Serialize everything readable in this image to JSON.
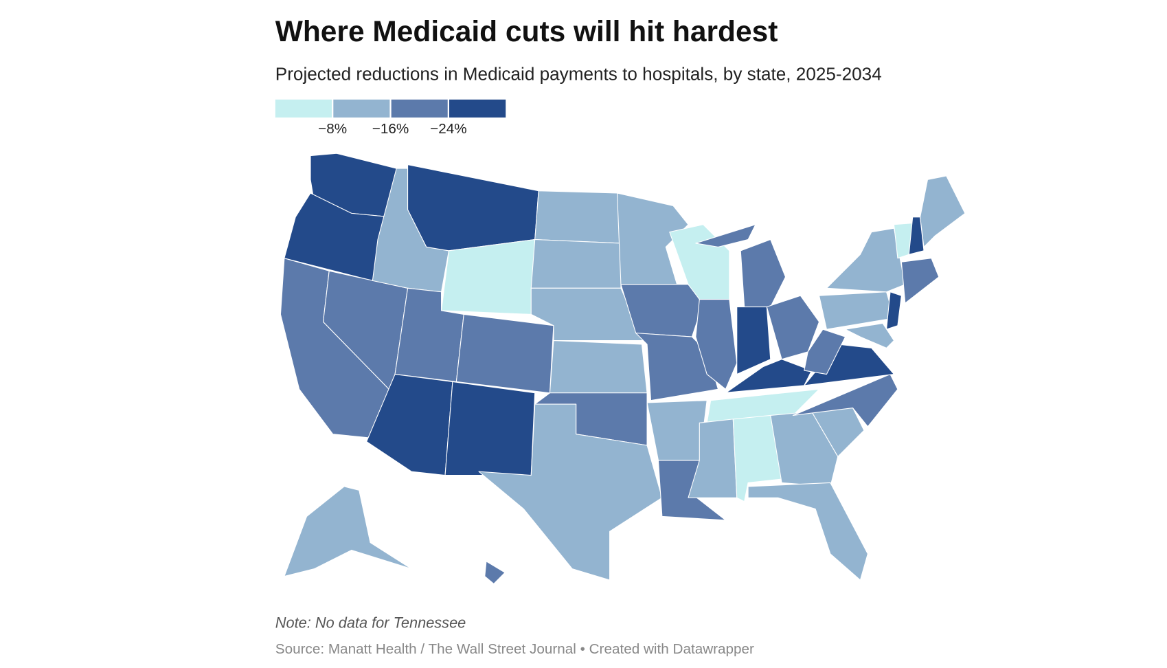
{
  "header": {
    "title": "Where Medicaid cuts will hit hardest",
    "subtitle": "Projected reductions in Medicaid payments to hospitals, by state, 2025-2034"
  },
  "legend": {
    "colors": [
      "#c5eff0",
      "#93b4d0",
      "#5c7aab",
      "#234a8a"
    ],
    "ticks": [
      {
        "value": -8,
        "label": "−8%"
      },
      {
        "value": -16,
        "label": "−16%"
      },
      {
        "value": -24,
        "label": "−24%"
      }
    ]
  },
  "notes": {
    "note": "Note: No data for Tennessee",
    "source": "Source: Manatt Health / The Wall Street Journal • Created with Datawrapper"
  }
}
